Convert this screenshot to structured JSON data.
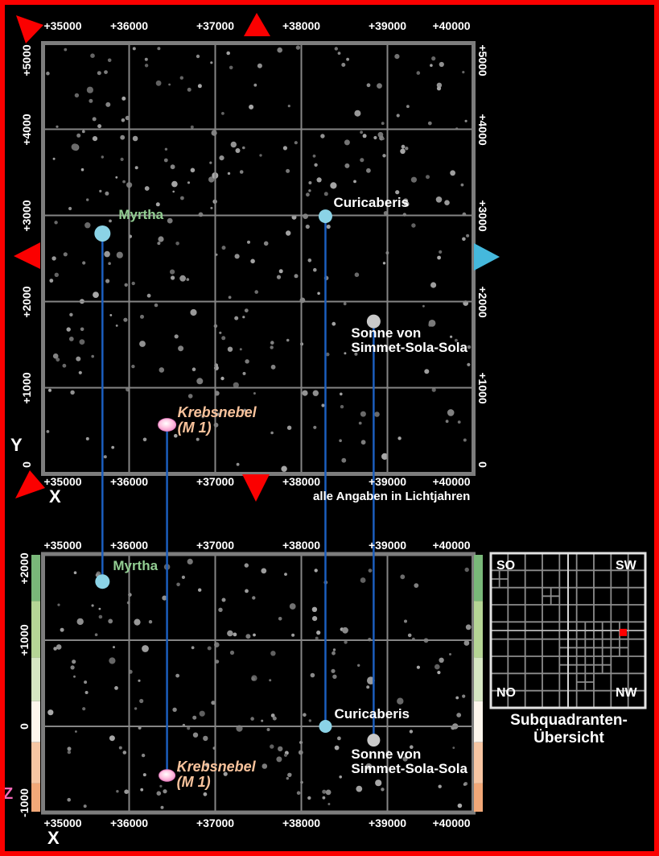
{
  "annotation": {
    "units": "alle Angaben in Lichtjahren"
  },
  "axes": {
    "x_label": "X",
    "y_label": "Y",
    "z_label": "Z"
  },
  "top_map": {
    "x_ticks": [
      {
        "label": "+35000",
        "value": 35000
      },
      {
        "label": "+36000",
        "value": 36000
      },
      {
        "label": "+37000",
        "value": 37000
      },
      {
        "label": "+38000",
        "value": 38000
      },
      {
        "label": "+39000",
        "value": 39000
      },
      {
        "label": "+40000",
        "value": 40000
      }
    ],
    "y_ticks": [
      {
        "label": "+5000",
        "value": 5000
      },
      {
        "label": "+4000",
        "value": 4000
      },
      {
        "label": "+3000",
        "value": 3000
      },
      {
        "label": "+2000",
        "value": 2000
      },
      {
        "label": "+1000",
        "value": 1000
      },
      {
        "label": "0",
        "value": 0
      }
    ]
  },
  "bottom_map": {
    "x_ticks": [
      {
        "label": "+35000",
        "value": 35000
      },
      {
        "label": "+36000",
        "value": 36000
      },
      {
        "label": "+37000",
        "value": 37000
      },
      {
        "label": "+38000",
        "value": 38000
      },
      {
        "label": "+39000",
        "value": 39000
      },
      {
        "label": "+40000",
        "value": 40000
      }
    ],
    "z_ticks": [
      {
        "label": "+2000",
        "value": 2000
      },
      {
        "label": "+1000",
        "value": 1000
      },
      {
        "label": "0",
        "value": 0
      },
      {
        "label": "-1000",
        "value": -1000
      }
    ]
  },
  "objects": [
    {
      "id": "myrtha",
      "name_lines": [
        "Myrtha"
      ],
      "x_ly": 35690,
      "y_ly": 2790,
      "z_ly": 1680,
      "type": "star",
      "dot_color": "#8bd3e6",
      "label_color": "#92cd92",
      "label_italic": false
    },
    {
      "id": "curicaberis",
      "name_lines": [
        "Curicaberis"
      ],
      "x_ly": 38280,
      "y_ly": 2990,
      "z_ly": 0,
      "type": "star",
      "dot_color": "#8bd3e6",
      "label_color": "#ffffff",
      "label_italic": false
    },
    {
      "id": "sonne-von-simmet-sola-sola",
      "name_lines": [
        "Sonne von",
        "Simmet-Sola-Sola"
      ],
      "x_ly": 38840,
      "y_ly": 1770,
      "z_ly": -160,
      "type": "star",
      "dot_color": "#c9c9c9",
      "label_color": "#ffffff",
      "label_italic": false
    },
    {
      "id": "krebsnebel-m1",
      "name_lines": [
        "Krebsnebel",
        "(M 1)"
      ],
      "x_ly": 36440,
      "y_ly": 570,
      "z_ly": -570,
      "type": "nebula",
      "dot_color": "#f6a8d2",
      "label_color": "#f9c39c",
      "label_italic": true
    }
  ],
  "overview": {
    "corner_labels": {
      "top_left": "SO",
      "top_right": "SW",
      "bottom_left": "NO",
      "bottom_right": "NW"
    },
    "title_lines": [
      "Subquadranten-",
      "Übersicht"
    ],
    "grid_size": 9,
    "subdivided_cells": [
      [
        0,
        1
      ],
      [
        3,
        2
      ],
      [
        4,
        4
      ],
      [
        5,
        4
      ],
      [
        6,
        4
      ],
      [
        7,
        4
      ],
      [
        4,
        5
      ],
      [
        5,
        5
      ],
      [
        6,
        5
      ],
      [
        7,
        5
      ],
      [
        4,
        6
      ],
      [
        5,
        6
      ],
      [
        6,
        6
      ],
      [
        5,
        7
      ]
    ],
    "highlight_cell": {
      "col": 7.5,
      "row": 4.4
    }
  },
  "colors": {
    "frame_red": "#fb0000",
    "arrow_red": "#fb0000",
    "arrow_cyan": "#45b8dc",
    "connector_blue": "#1b5ebe",
    "grid_gray": "#858585",
    "frame_gray": "#7d7d7d",
    "z_axis_letter": "#f468b8",
    "overview_highlight": "#ff0000",
    "zbar_bands": [
      "#79b879",
      "#b5d595",
      "#d6e7c3",
      "#fdf6ec",
      "#f7c6a3",
      "#f2a878"
    ],
    "zbar_fractions": [
      0,
      0.18,
      0.4,
      0.57,
      0.73,
      0.89,
      1
    ]
  }
}
